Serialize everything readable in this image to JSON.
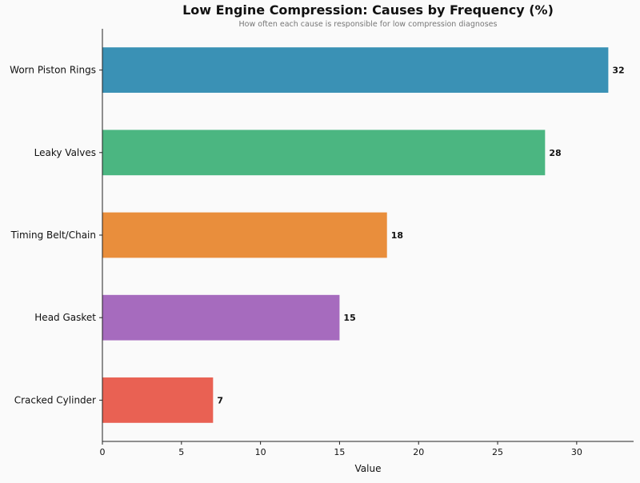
{
  "chart_data": {
    "type": "bar",
    "orientation": "horizontal",
    "title": "Low Engine Compression: Causes by Frequency (%)",
    "subtitle": "How often each cause is responsible for low compression diagnoses",
    "xlabel": "Value",
    "ylabel": "",
    "categories": [
      "Worn Piston Rings",
      "Leaky Valves",
      "Timing Belt/Chain",
      "Head Gasket",
      "Cracked Cylinder"
    ],
    "values": [
      32,
      28,
      18,
      15,
      7
    ],
    "colors": [
      "#3a91b5",
      "#4bb681",
      "#e98e3c",
      "#a66bbe",
      "#e96153"
    ],
    "xlim": [
      0,
      33.6
    ],
    "xticks": [
      0,
      5,
      10,
      15,
      20,
      25,
      30
    ],
    "grid": false,
    "data_labels": [
      "32",
      "28",
      "18",
      "15",
      "7"
    ]
  }
}
